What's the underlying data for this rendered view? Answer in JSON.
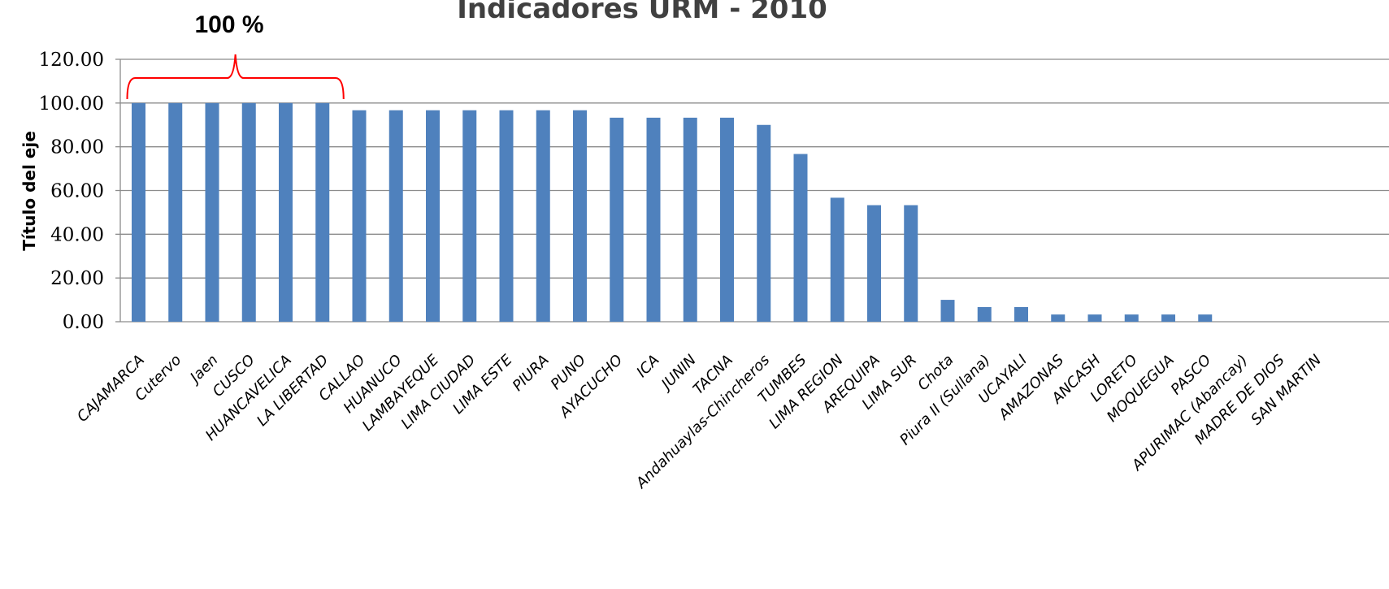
{
  "chart_data": {
    "type": "bar",
    "title": "Indicadores URM - 2010",
    "ylabel": "Título del eje",
    "xlabel": "",
    "ylim": [
      0,
      120
    ],
    "yticks": [
      "0.00",
      "20.00",
      "40.00",
      "60.00",
      "80.00",
      "100.00",
      "120.00"
    ],
    "grid": true,
    "bar_color": "#4F81BD",
    "categories": [
      "CAJAMARCA",
      "Cutervo",
      "Jaen",
      "CUSCO",
      "HUANCAVELICA",
      "LA LIBERTAD",
      "CALLAO",
      "HUANUCO",
      "LAMBAYEQUE",
      "LIMA CIUDAD",
      "LIMA ESTE",
      "PIURA",
      "PUNO",
      "AYACUCHO",
      "ICA",
      "JUNIN",
      "TACNA",
      "Andahuaylas-Chincheros",
      "TUMBES",
      "LIMA REGION",
      "AREQUIPA",
      "LIMA SUR",
      "Chota",
      "Piura II (Sullana)",
      "UCAYALI",
      "AMAZONAS",
      "ANCASH",
      "LORETO",
      "MOQUEGUA",
      "PASCO",
      "APURIMAC (Abancay)",
      "MADRE DE DIOS",
      "SAN MARTIN"
    ],
    "values": [
      100,
      100,
      100,
      100,
      100,
      100,
      96.7,
      96.7,
      96.7,
      96.7,
      96.7,
      96.7,
      96.7,
      93.3,
      93.3,
      93.3,
      93.3,
      90,
      76.7,
      56.7,
      53.3,
      53.3,
      10,
      6.7,
      6.7,
      3.3,
      3.3,
      3.3,
      3.3,
      3.3,
      0,
      0,
      0
    ],
    "annotation": {
      "text": "100 %",
      "color": "#FF0000",
      "from_category": "CAJAMARCA",
      "to_category": "LA LIBERTAD"
    }
  }
}
